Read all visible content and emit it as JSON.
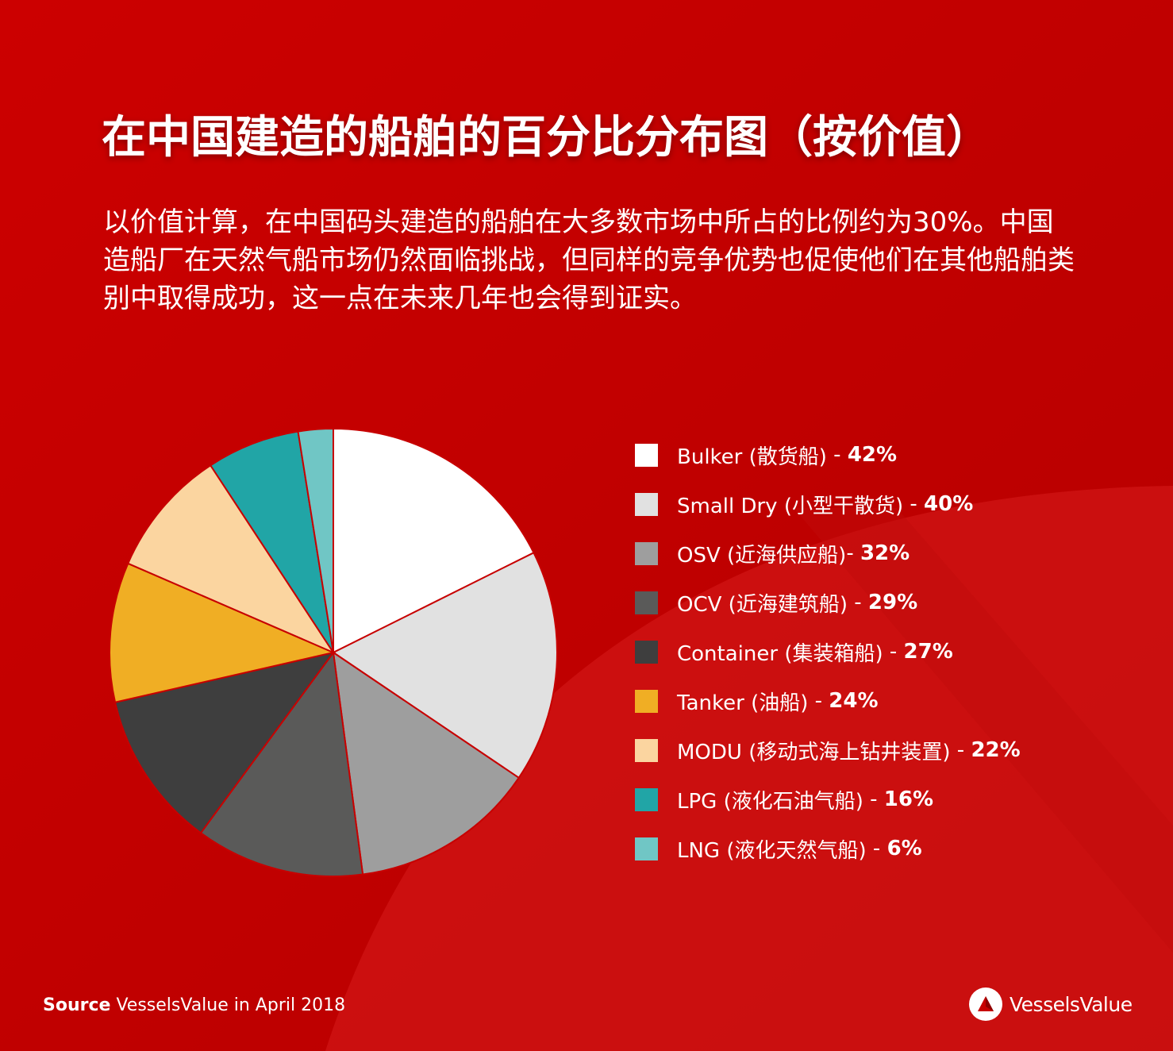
{
  "title": "在中国建造的船舶的百分比分布图（按价值）",
  "subtitle": "以价值计算，在中国码头建造的船舶在大多数市场中所占的比例约为30%。中国造船厂在天然气船市场仍然面临挑战，但同样的竞争优势也促使他们在其他船舶类别中取得成功，这一点在未来几年也会得到证实。",
  "source": {
    "label": "Source",
    "text": "VesselsValue in April 2018"
  },
  "logo": {
    "text": "VesselsValue",
    "icon": "vesselsvalue-logo-icon"
  },
  "colors": {
    "background": "#c70000"
  },
  "chart_data": {
    "type": "pie",
    "legend_position": "right",
    "categories": [
      "Bulker (散货船)",
      "Small Dry (小型干散货)",
      "OSV  (近海供应船)",
      "OCV (近海建筑船)",
      "Container (集装箱船)",
      "Tanker (油船)",
      "MODU (移动式海上钻井装置)",
      "LPG (液化石油气船)",
      "LNG (液化天然气船)"
    ],
    "separators": [
      " - ",
      " - ",
      "- ",
      " - ",
      " - ",
      " - ",
      " - ",
      " - ",
      " - "
    ],
    "value_labels": [
      "42%",
      "40%",
      "32%",
      "29%",
      "27%",
      "24%",
      "22%",
      "16%",
      "6%"
    ],
    "values": [
      42,
      40,
      32,
      29,
      27,
      24,
      22,
      16,
      6
    ],
    "colors": [
      "#ffffff",
      "#e1e1e1",
      "#9e9e9e",
      "#5a5a59",
      "#3e3e3e",
      "#f0ae24",
      "#fbd5a0",
      "#21a5a6",
      "#70c6c5"
    ]
  }
}
